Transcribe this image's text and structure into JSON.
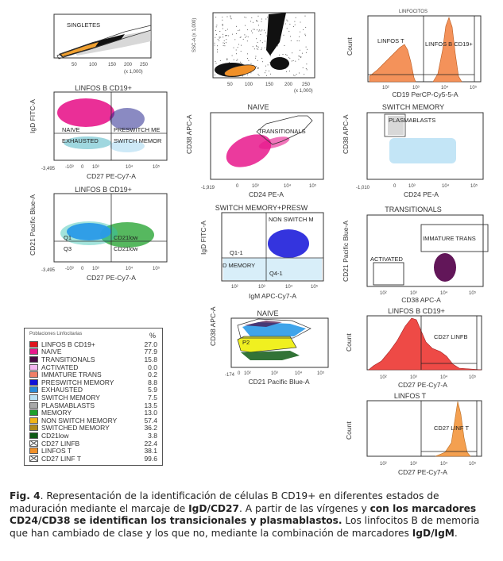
{
  "figure": {
    "panels": [
      {
        "id": "singletes",
        "title": "",
        "gates": [
          "SINGLETES"
        ],
        "x_ticks": [
          "50",
          "100",
          "150",
          "200",
          "250"
        ],
        "x_scale_note": "(x 1,000)",
        "y_ticks": [
          "50",
          "100",
          "150",
          "200",
          "250"
        ],
        "xlabel": "",
        "ylabel": ""
      },
      {
        "id": "linfocitos-gate",
        "title": "",
        "gates": [],
        "x_ticks": [
          "50",
          "100",
          "150",
          "200",
          "250"
        ],
        "x_scale_note": "(x 1,000)",
        "y_ticks": [
          "50",
          "100",
          "150",
          "200",
          "250"
        ],
        "xlabel": "",
        "ylabel": "SSC-A (x 1,000)"
      },
      {
        "id": "linfocitos-hist",
        "title": "LINFOCITOS",
        "gates": [
          "LINFOS T",
          "LINFOS B CD19+"
        ],
        "x_ticks": [
          "10²",
          "10³",
          "10⁴",
          "10⁵"
        ],
        "y_ticks": [
          "0",
          "500",
          "1,000",
          "1,500",
          "2,000"
        ],
        "xlabel": "CD19 PerCP-Cy5-5-A",
        "ylabel": "Count"
      },
      {
        "id": "linfos-b-igd-cd27",
        "title": "LINFOS B CD19+",
        "gates": [
          "NAIVE",
          "PRESWITCH ME",
          "EXHAUSTED",
          "SWITCH MEMOR"
        ],
        "x_ticks": [
          "-3,495",
          "-10³",
          "0",
          "10³",
          "10⁴",
          "10⁵"
        ],
        "y_ticks": [
          "-316",
          "0",
          "10³",
          "10⁴",
          "10⁵"
        ],
        "xlabel": "CD27 PE-Cy7-A",
        "ylabel": "IgD FITC-A"
      },
      {
        "id": "naive-cd38-cd24",
        "title": "NAIVE",
        "gates": [
          "TRANSITIONALS"
        ],
        "x_ticks": [
          "-1,919",
          "0",
          "10³",
          "10⁴",
          "10⁵"
        ],
        "y_ticks": [
          "-1,999",
          "0",
          "10³",
          "10⁴",
          "10⁵"
        ],
        "xlabel": "CD24 PE-A",
        "ylabel": "CD38 APC-A"
      },
      {
        "id": "switch-memory-cd38-cd24",
        "title": "SWITCH MEMORY",
        "gates": [
          "PLASMABLASTS"
        ],
        "x_ticks": [
          "-1,010",
          "0",
          "10³",
          "10⁴",
          "10⁵"
        ],
        "y_ticks": [
          "-1,960",
          "0",
          "10³",
          "10⁴",
          "10⁵"
        ],
        "xlabel": "CD24 PE-A",
        "ylabel": "CD38 APC-A"
      },
      {
        "id": "linfos-b-cd21-cd27",
        "title": "LINFOS B CD19+",
        "gates": [
          "Q1",
          "CD21low",
          "Q3",
          "CD21low"
        ],
        "x_ticks": [
          "-3,495",
          "-10³",
          "0",
          "10³",
          "10⁴",
          "10⁵"
        ],
        "y_ticks": [
          "-174",
          "0",
          "10³",
          "10⁴",
          "10⁵"
        ],
        "xlabel": "CD27 PE-Cy7-A",
        "ylabel": "CD21 Pacific Blue-A"
      },
      {
        "id": "switch-memory-presw-igd-igm",
        "title": "SWITCH MEMORY+PRESW",
        "gates": [
          "NON SWITCH M",
          "Q1-1",
          "D MEMORY",
          "Q4-1"
        ],
        "x_ticks": [
          "10²",
          "10³",
          "10⁴",
          "10⁵"
        ],
        "y_ticks": [
          "10²",
          "10³",
          "10⁴",
          "10⁵"
        ],
        "xlabel": "IgM APC-Cy7-A",
        "ylabel": "IgD FITC-A"
      },
      {
        "id": "transitionals-cd21-cd38",
        "title": "TRANSITIONALS",
        "gates": [
          "IMMATURE TRANS",
          "ACTIVATED"
        ],
        "x_ticks": [
          "10²",
          "10³",
          "10⁴",
          "10⁵"
        ],
        "y_ticks": [
          "10²",
          "10³",
          "10⁴",
          "10⁵"
        ],
        "xlabel": "CD38 APC-A",
        "ylabel": "CD21 Pacific Blue-A"
      },
      {
        "id": "naive-cd38-cd21",
        "title": "NAIVE",
        "gates": [
          "P2"
        ],
        "x_ticks": [
          "-174",
          "0",
          "10²",
          "10³",
          "10⁴",
          "10⁵"
        ],
        "y_ticks": [
          "-1,999",
          "0",
          "10³",
          "10⁴",
          "10⁵"
        ],
        "xlabel": "CD21 Pacific Blue-A",
        "ylabel": "CD38 APC-A"
      },
      {
        "id": "linfos-b-cd27-hist",
        "title": "LINFOS B CD19+",
        "gates": [
          "CD27 LINFB"
        ],
        "x_ticks": [
          "10²",
          "10³",
          "10⁴",
          "10⁵"
        ],
        "y_ticks": [
          "0",
          "100",
          "200",
          "300",
          "400",
          "500"
        ],
        "xlabel": "CD27 PE-Cy7-A",
        "ylabel": "Count"
      },
      {
        "id": "linfos-t-cd27-hist",
        "title": "LINFOS T",
        "gates": [
          "CD27 LINF T"
        ],
        "x_ticks": [
          "10²",
          "10³",
          "10⁴",
          "10⁵"
        ],
        "y_ticks": [
          "0",
          "100",
          "200",
          "300",
          "400",
          "500"
        ],
        "xlabel": "CD27 PE-Cy7-A",
        "ylabel": "Count"
      }
    ],
    "legend": {
      "header": "Poblaciones Linfocitarias",
      "pct_label": "%",
      "rows": [
        {
          "name": "LINFOS B CD19+",
          "value": "27.0",
          "color": "#e0141e"
        },
        {
          "name": "NAIVE",
          "value": "77.9",
          "color": "#e8188c"
        },
        {
          "name": "TRANSITIONALS",
          "value": "15.8",
          "color": "#4a0a44"
        },
        {
          "name": "ACTIVATED",
          "value": "0.0",
          "color": "#f4b6f0"
        },
        {
          "name": "IMMATURE TRANS",
          "value": "0.2",
          "color": "#f08068"
        },
        {
          "name": "PRESWITCH MEMORY",
          "value": "8.8",
          "color": "#1010d8"
        },
        {
          "name": "EXHAUSTED",
          "value": "5.9",
          "color": "#2a8ad8"
        },
        {
          "name": "SWITCH MEMORY",
          "value": "7.5",
          "color": "#b8e0f4"
        },
        {
          "name": "PLASMABLASTS",
          "value": "13.5",
          "color": "#a8a8a8"
        },
        {
          "name": "MEMORY",
          "value": "13.0",
          "color": "#1ea02a"
        },
        {
          "name": "NON SWITCH MEMORY",
          "value": "57.4",
          "color": "#f0b418"
        },
        {
          "name": "SWITCHED MEMORY",
          "value": "36.2",
          "color": "#b08a1c"
        },
        {
          "name": "CD21low",
          "value": "3.8",
          "color": "#0e5a14"
        },
        {
          "name": "CD27 LINFB",
          "value": "22.4",
          "color": "cross"
        },
        {
          "name": "LINFOS T",
          "value": "38.1",
          "color": "#f09028"
        },
        {
          "name": "CD27 LINF T",
          "value": "99.6",
          "color": "cross"
        }
      ]
    },
    "caption": {
      "fig_label": "Fig. 4",
      "p1": ". Representación de la identificación de células B CD19+ en diferentes estados de maduración mediante el marcaje de ",
      "b1": "IgD/CD27",
      "p2": ". A partir de las vírgenes y ",
      "b2": "con los marcadores CD24/CD38 se identifican los transicionales y plasmablastos.",
      "p3": " Los linfocitos B de memoria que han cambiado de clase y los que no, mediante la combinación de marcadores ",
      "b3": "IgD/IgM",
      "p4": "."
    }
  }
}
